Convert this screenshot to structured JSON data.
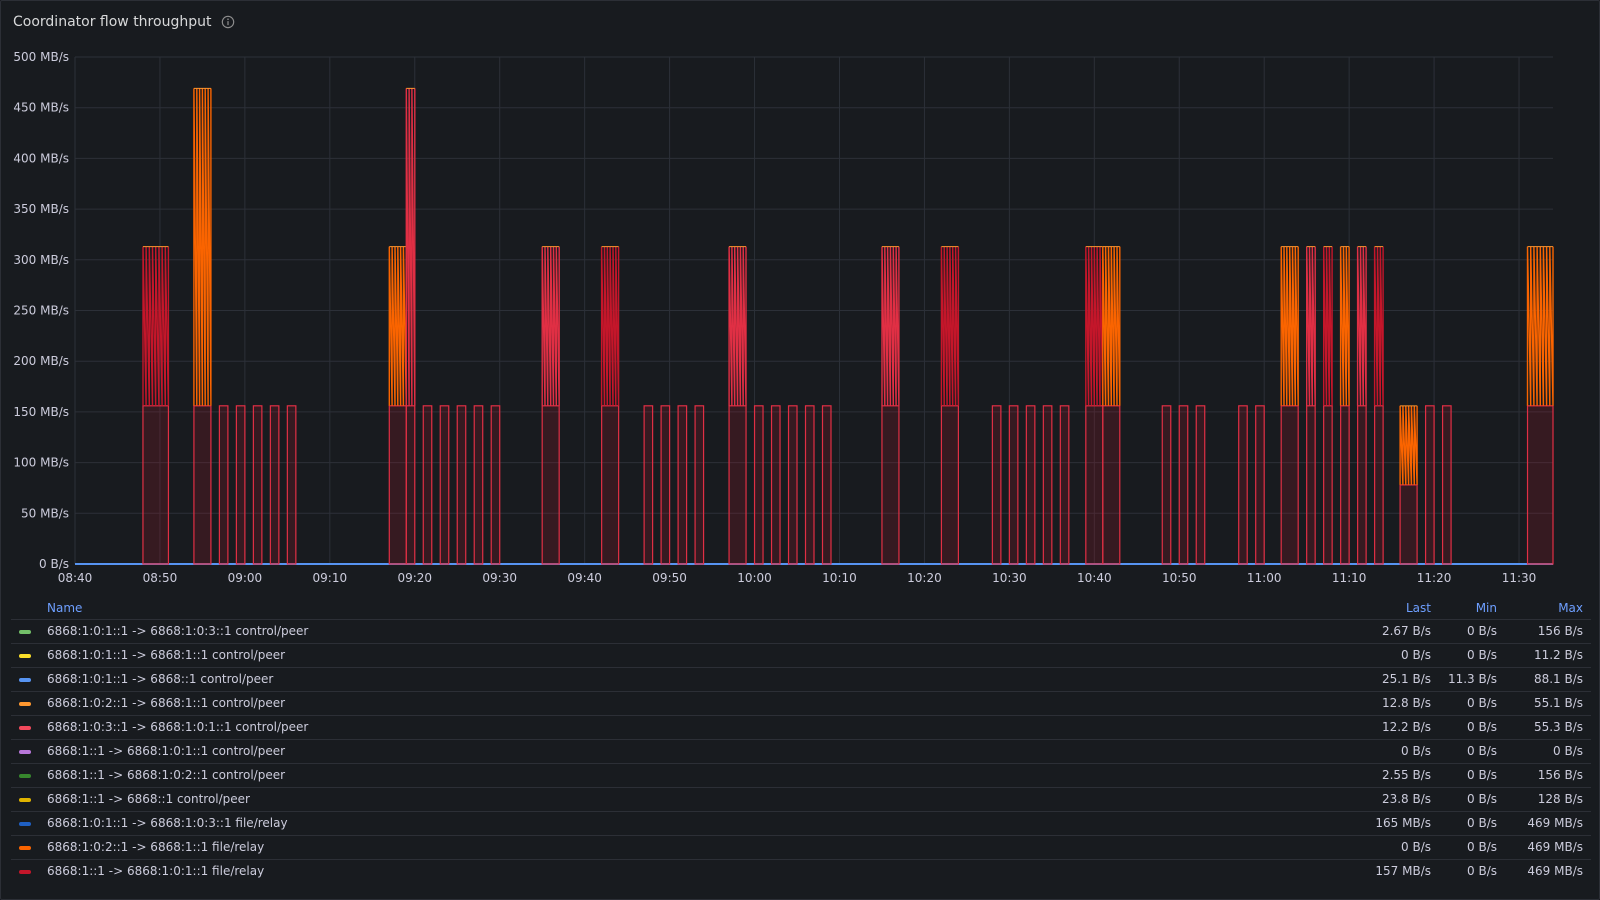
{
  "panel": {
    "title": "Coordinator flow throughput",
    "info_icon": "info-circle-icon"
  },
  "colors": {
    "background": "#181b1f",
    "grid": "#2c3038",
    "axis_text": "#ccccdc",
    "legend_header": "#6e9fff"
  },
  "chart_data": {
    "type": "line",
    "title": "Coordinator flow throughput",
    "xlabel": "",
    "ylabel": "",
    "x_range": [
      "08:40",
      "11:34"
    ],
    "x_ticks": [
      "08:40",
      "08:50",
      "09:00",
      "09:10",
      "09:20",
      "09:30",
      "09:40",
      "09:50",
      "10:00",
      "10:10",
      "10:20",
      "10:30",
      "10:40",
      "10:50",
      "11:00",
      "11:10",
      "11:20",
      "11:30"
    ],
    "y_ticks": [
      "0 B/s",
      "50 MB/s",
      "100 MB/s",
      "150 MB/s",
      "200 MB/s",
      "250 MB/s",
      "300 MB/s",
      "350 MB/s",
      "400 MB/s",
      "450 MB/s",
      "500 MB/s"
    ],
    "ylim": [
      0,
      500
    ],
    "y_unit": "MB/s",
    "grid": true,
    "legend_placement": "bottom",
    "bursts": [
      {
        "start": "08:48",
        "end": "08:51",
        "base": 156,
        "peak": 313
      },
      {
        "start": "08:54",
        "end": "08:56",
        "base": 156,
        "peak": 469
      },
      {
        "start": "08:57",
        "end": "08:58",
        "base": 156,
        "peak": 156
      },
      {
        "start": "08:59",
        "end": "09:00",
        "base": 156,
        "peak": 156
      },
      {
        "start": "09:01",
        "end": "09:02",
        "base": 156,
        "peak": 156
      },
      {
        "start": "09:03",
        "end": "09:04",
        "base": 156,
        "peak": 156
      },
      {
        "start": "09:05",
        "end": "09:06",
        "base": 156,
        "peak": 156
      },
      {
        "start": "09:17",
        "end": "09:19",
        "base": 156,
        "peak": 313
      },
      {
        "start": "09:19",
        "end": "09:20",
        "base": 156,
        "peak": 469
      },
      {
        "start": "09:21",
        "end": "09:22",
        "base": 156,
        "peak": 156
      },
      {
        "start": "09:23",
        "end": "09:24",
        "base": 156,
        "peak": 156
      },
      {
        "start": "09:25",
        "end": "09:26",
        "base": 156,
        "peak": 156
      },
      {
        "start": "09:27",
        "end": "09:28",
        "base": 156,
        "peak": 156
      },
      {
        "start": "09:29",
        "end": "09:30",
        "base": 156,
        "peak": 156
      },
      {
        "start": "09:35",
        "end": "09:37",
        "base": 156,
        "peak": 313
      },
      {
        "start": "09:42",
        "end": "09:44",
        "base": 156,
        "peak": 313
      },
      {
        "start": "09:47",
        "end": "09:48",
        "base": 156,
        "peak": 156
      },
      {
        "start": "09:49",
        "end": "09:50",
        "base": 156,
        "peak": 156
      },
      {
        "start": "09:51",
        "end": "09:52",
        "base": 156,
        "peak": 156
      },
      {
        "start": "09:53",
        "end": "09:54",
        "base": 156,
        "peak": 156
      },
      {
        "start": "09:57",
        "end": "09:59",
        "base": 156,
        "peak": 313
      },
      {
        "start": "10:00",
        "end": "10:01",
        "base": 156,
        "peak": 156
      },
      {
        "start": "10:02",
        "end": "10:03",
        "base": 156,
        "peak": 156
      },
      {
        "start": "10:04",
        "end": "10:05",
        "base": 156,
        "peak": 156
      },
      {
        "start": "10:06",
        "end": "10:07",
        "base": 156,
        "peak": 156
      },
      {
        "start": "10:08",
        "end": "10:09",
        "base": 156,
        "peak": 156
      },
      {
        "start": "10:15",
        "end": "10:17",
        "base": 156,
        "peak": 313
      },
      {
        "start": "10:22",
        "end": "10:24",
        "base": 156,
        "peak": 313
      },
      {
        "start": "10:28",
        "end": "10:29",
        "base": 156,
        "peak": 156
      },
      {
        "start": "10:30",
        "end": "10:31",
        "base": 156,
        "peak": 156
      },
      {
        "start": "10:32",
        "end": "10:33",
        "base": 156,
        "peak": 156
      },
      {
        "start": "10:34",
        "end": "10:35",
        "base": 156,
        "peak": 156
      },
      {
        "start": "10:36",
        "end": "10:37",
        "base": 156,
        "peak": 156
      },
      {
        "start": "10:39",
        "end": "10:41",
        "base": 156,
        "peak": 313
      },
      {
        "start": "10:41",
        "end": "10:43",
        "base": 156,
        "peak": 313
      },
      {
        "start": "10:48",
        "end": "10:49",
        "base": 156,
        "peak": 156
      },
      {
        "start": "10:50",
        "end": "10:51",
        "base": 156,
        "peak": 156
      },
      {
        "start": "10:52",
        "end": "10:53",
        "base": 156,
        "peak": 156
      },
      {
        "start": "10:57",
        "end": "10:58",
        "base": 156,
        "peak": 156
      },
      {
        "start": "10:59",
        "end": "11:00",
        "base": 156,
        "peak": 156
      },
      {
        "start": "11:02",
        "end": "11:04",
        "base": 156,
        "peak": 313
      },
      {
        "start": "11:05",
        "end": "11:06",
        "base": 156,
        "peak": 313
      },
      {
        "start": "11:07",
        "end": "11:08",
        "base": 156,
        "peak": 313
      },
      {
        "start": "11:09",
        "end": "11:10",
        "base": 156,
        "peak": 313
      },
      {
        "start": "11:11",
        "end": "11:12",
        "base": 156,
        "peak": 313
      },
      {
        "start": "11:13",
        "end": "11:14",
        "base": 156,
        "peak": 313
      },
      {
        "start": "11:16",
        "end": "11:18",
        "base": 78,
        "peak": 156
      },
      {
        "start": "11:19",
        "end": "11:20",
        "base": 156,
        "peak": 156
      },
      {
        "start": "11:21",
        "end": "11:22",
        "base": 156,
        "peak": 156
      },
      {
        "start": "11:31",
        "end": "11:34",
        "base": 156,
        "peak": 313
      }
    ],
    "series": [
      {
        "name": "6868:1:0:1::1 -> 6868:1:0:3::1 control/peer",
        "color": "#73bf69",
        "last": "2.67 B/s",
        "min": "0 B/s",
        "max": "156 B/s"
      },
      {
        "name": "6868:1:0:1::1 -> 6868:1::1 control/peer",
        "color": "#fade2a",
        "last": "0 B/s",
        "min": "0 B/s",
        "max": "11.2 B/s"
      },
      {
        "name": "6868:1:0:1::1 -> 6868::1 control/peer",
        "color": "#5794f2",
        "last": "25.1 B/s",
        "min": "11.3 B/s",
        "max": "88.1 B/s"
      },
      {
        "name": "6868:1:0:2::1 -> 6868:1::1 control/peer",
        "color": "#ff9830",
        "last": "12.8 B/s",
        "min": "0 B/s",
        "max": "55.1 B/s"
      },
      {
        "name": "6868:1:0:3::1 -> 6868:1:0:1::1 control/peer",
        "color": "#f2495c",
        "last": "12.2 B/s",
        "min": "0 B/s",
        "max": "55.3 B/s"
      },
      {
        "name": "6868:1::1 -> 6868:1:0:1::1 control/peer",
        "color": "#b877d9",
        "last": "0 B/s",
        "min": "0 B/s",
        "max": "0 B/s"
      },
      {
        "name": "6868:1::1 -> 6868:1:0:2::1 control/peer",
        "color": "#37872d",
        "last": "2.55 B/s",
        "min": "0 B/s",
        "max": "156 B/s"
      },
      {
        "name": "6868:1::1 -> 6868::1 control/peer",
        "color": "#e0b400",
        "last": "23.8 B/s",
        "min": "0 B/s",
        "max": "128 B/s"
      },
      {
        "name": "6868:1:0:1::1 -> 6868:1:0:3::1 file/relay",
        "color": "#1f60c4",
        "last": "165 MB/s",
        "min": "0 B/s",
        "max": "469 MB/s"
      },
      {
        "name": "6868:1:0:2::1 -> 6868:1::1 file/relay",
        "color": "#fa6400",
        "last": "0 B/s",
        "min": "0 B/s",
        "max": "469 MB/s"
      },
      {
        "name": "6868:1::1 -> 6868:1:0:1::1 file/relay",
        "color": "#c4162a",
        "last": "157 MB/s",
        "min": "0 B/s",
        "max": "469 MB/s"
      }
    ]
  },
  "legend": {
    "header": {
      "name": "Name",
      "last": "Last",
      "min": "Min",
      "max": "Max"
    }
  }
}
